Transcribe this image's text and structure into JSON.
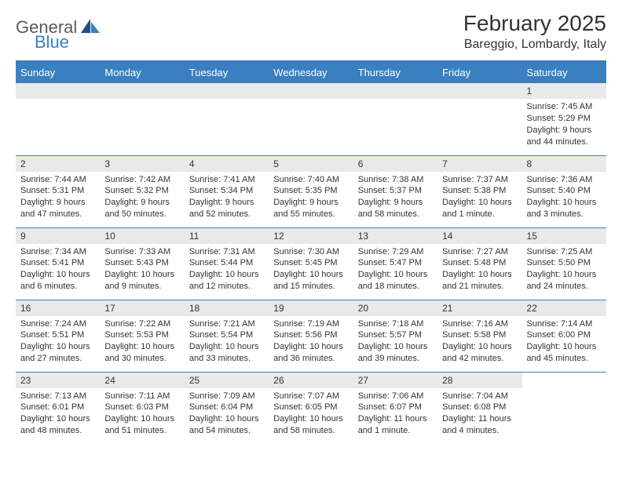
{
  "logo": {
    "general": "General",
    "blue": "Blue"
  },
  "header": {
    "month_title": "February 2025",
    "location": "Bareggio, Lombardy, Italy"
  },
  "colors": {
    "accent": "#3a7fbf",
    "header_bg": "#3a7fbf",
    "header_text": "#ffffff",
    "day_bar_bg": "#e9e9e9",
    "body_text": "#333333",
    "logo_gray": "#5a5a5a"
  },
  "weekdays": [
    "Sunday",
    "Monday",
    "Tuesday",
    "Wednesday",
    "Thursday",
    "Friday",
    "Saturday"
  ],
  "weeks": [
    [
      null,
      null,
      null,
      null,
      null,
      null,
      {
        "n": "1",
        "sr": "Sunrise: 7:45 AM",
        "ss": "Sunset: 5:29 PM",
        "dl": "Daylight: 9 hours and 44 minutes."
      }
    ],
    [
      {
        "n": "2",
        "sr": "Sunrise: 7:44 AM",
        "ss": "Sunset: 5:31 PM",
        "dl": "Daylight: 9 hours and 47 minutes."
      },
      {
        "n": "3",
        "sr": "Sunrise: 7:42 AM",
        "ss": "Sunset: 5:32 PM",
        "dl": "Daylight: 9 hours and 50 minutes."
      },
      {
        "n": "4",
        "sr": "Sunrise: 7:41 AM",
        "ss": "Sunset: 5:34 PM",
        "dl": "Daylight: 9 hours and 52 minutes."
      },
      {
        "n": "5",
        "sr": "Sunrise: 7:40 AM",
        "ss": "Sunset: 5:35 PM",
        "dl": "Daylight: 9 hours and 55 minutes."
      },
      {
        "n": "6",
        "sr": "Sunrise: 7:38 AM",
        "ss": "Sunset: 5:37 PM",
        "dl": "Daylight: 9 hours and 58 minutes."
      },
      {
        "n": "7",
        "sr": "Sunrise: 7:37 AM",
        "ss": "Sunset: 5:38 PM",
        "dl": "Daylight: 10 hours and 1 minute."
      },
      {
        "n": "8",
        "sr": "Sunrise: 7:36 AM",
        "ss": "Sunset: 5:40 PM",
        "dl": "Daylight: 10 hours and 3 minutes."
      }
    ],
    [
      {
        "n": "9",
        "sr": "Sunrise: 7:34 AM",
        "ss": "Sunset: 5:41 PM",
        "dl": "Daylight: 10 hours and 6 minutes."
      },
      {
        "n": "10",
        "sr": "Sunrise: 7:33 AM",
        "ss": "Sunset: 5:43 PM",
        "dl": "Daylight: 10 hours and 9 minutes."
      },
      {
        "n": "11",
        "sr": "Sunrise: 7:31 AM",
        "ss": "Sunset: 5:44 PM",
        "dl": "Daylight: 10 hours and 12 minutes."
      },
      {
        "n": "12",
        "sr": "Sunrise: 7:30 AM",
        "ss": "Sunset: 5:45 PM",
        "dl": "Daylight: 10 hours and 15 minutes."
      },
      {
        "n": "13",
        "sr": "Sunrise: 7:29 AM",
        "ss": "Sunset: 5:47 PM",
        "dl": "Daylight: 10 hours and 18 minutes."
      },
      {
        "n": "14",
        "sr": "Sunrise: 7:27 AM",
        "ss": "Sunset: 5:48 PM",
        "dl": "Daylight: 10 hours and 21 minutes."
      },
      {
        "n": "15",
        "sr": "Sunrise: 7:25 AM",
        "ss": "Sunset: 5:50 PM",
        "dl": "Daylight: 10 hours and 24 minutes."
      }
    ],
    [
      {
        "n": "16",
        "sr": "Sunrise: 7:24 AM",
        "ss": "Sunset: 5:51 PM",
        "dl": "Daylight: 10 hours and 27 minutes."
      },
      {
        "n": "17",
        "sr": "Sunrise: 7:22 AM",
        "ss": "Sunset: 5:53 PM",
        "dl": "Daylight: 10 hours and 30 minutes."
      },
      {
        "n": "18",
        "sr": "Sunrise: 7:21 AM",
        "ss": "Sunset: 5:54 PM",
        "dl": "Daylight: 10 hours and 33 minutes."
      },
      {
        "n": "19",
        "sr": "Sunrise: 7:19 AM",
        "ss": "Sunset: 5:56 PM",
        "dl": "Daylight: 10 hours and 36 minutes."
      },
      {
        "n": "20",
        "sr": "Sunrise: 7:18 AM",
        "ss": "Sunset: 5:57 PM",
        "dl": "Daylight: 10 hours and 39 minutes."
      },
      {
        "n": "21",
        "sr": "Sunrise: 7:16 AM",
        "ss": "Sunset: 5:58 PM",
        "dl": "Daylight: 10 hours and 42 minutes."
      },
      {
        "n": "22",
        "sr": "Sunrise: 7:14 AM",
        "ss": "Sunset: 6:00 PM",
        "dl": "Daylight: 10 hours and 45 minutes."
      }
    ],
    [
      {
        "n": "23",
        "sr": "Sunrise: 7:13 AM",
        "ss": "Sunset: 6:01 PM",
        "dl": "Daylight: 10 hours and 48 minutes."
      },
      {
        "n": "24",
        "sr": "Sunrise: 7:11 AM",
        "ss": "Sunset: 6:03 PM",
        "dl": "Daylight: 10 hours and 51 minutes."
      },
      {
        "n": "25",
        "sr": "Sunrise: 7:09 AM",
        "ss": "Sunset: 6:04 PM",
        "dl": "Daylight: 10 hours and 54 minutes."
      },
      {
        "n": "26",
        "sr": "Sunrise: 7:07 AM",
        "ss": "Sunset: 6:05 PM",
        "dl": "Daylight: 10 hours and 58 minutes."
      },
      {
        "n": "27",
        "sr": "Sunrise: 7:06 AM",
        "ss": "Sunset: 6:07 PM",
        "dl": "Daylight: 11 hours and 1 minute."
      },
      {
        "n": "28",
        "sr": "Sunrise: 7:04 AM",
        "ss": "Sunset: 6:08 PM",
        "dl": "Daylight: 11 hours and 4 minutes."
      },
      null
    ]
  ]
}
